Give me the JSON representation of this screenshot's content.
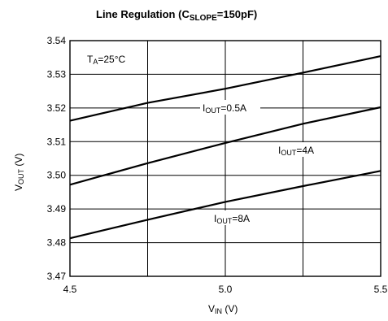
{
  "chart_data": {
    "type": "line",
    "title": {
      "main": "Line Regulation (C",
      "sub": "SLOPE",
      "tail": "=150pF)"
    },
    "xlabel": {
      "main": "V",
      "sub": "IN",
      "tail": " (V)"
    },
    "ylabel": {
      "main": "V",
      "sub": "OUT",
      "tail": " (V)"
    },
    "xlim": [
      4.5,
      5.5
    ],
    "ylim": [
      3.47,
      3.54
    ],
    "x_ticks": [
      {
        "value": 4.5,
        "label": "4.5"
      },
      {
        "value": 5.0,
        "label": "5.0"
      },
      {
        "value": 5.5,
        "label": "5.5"
      }
    ],
    "x_grid": [
      4.5,
      4.75,
      5.0,
      5.25,
      5.5
    ],
    "y_ticks": [
      {
        "value": 3.47,
        "label": "3.47"
      },
      {
        "value": 3.48,
        "label": "3.48"
      },
      {
        "value": 3.49,
        "label": "3.49"
      },
      {
        "value": 3.5,
        "label": "3.50"
      },
      {
        "value": 3.51,
        "label": "3.51"
      },
      {
        "value": 3.52,
        "label": "3.52"
      },
      {
        "value": 3.53,
        "label": "3.53"
      },
      {
        "value": 3.54,
        "label": "3.54"
      }
    ],
    "grid": true,
    "condition": {
      "main": "T",
      "sub": "A",
      "tail": "=25°C"
    },
    "series": [
      {
        "label": {
          "main": "I",
          "sub": "OUT",
          "tail": "=0.5A"
        },
        "x": [
          4.5,
          4.75,
          5.0,
          5.25,
          5.5
        ],
        "y": [
          3.5162,
          3.5215,
          3.5257,
          3.5305,
          3.5354
        ]
      },
      {
        "label": {
          "main": "I",
          "sub": "OUT",
          "tail": "=4A"
        },
        "x": [
          4.5,
          4.75,
          5.0,
          5.25,
          5.5
        ],
        "y": [
          3.4972,
          3.5036,
          3.5096,
          3.5153,
          3.5202
        ]
      },
      {
        "label": {
          "main": "I",
          "sub": "OUT",
          "tail": "=8A"
        },
        "x": [
          4.5,
          4.75,
          5.0,
          5.25,
          5.5
        ],
        "y": [
          3.4813,
          3.4868,
          3.4921,
          3.4968,
          3.5013
        ]
      }
    ]
  }
}
